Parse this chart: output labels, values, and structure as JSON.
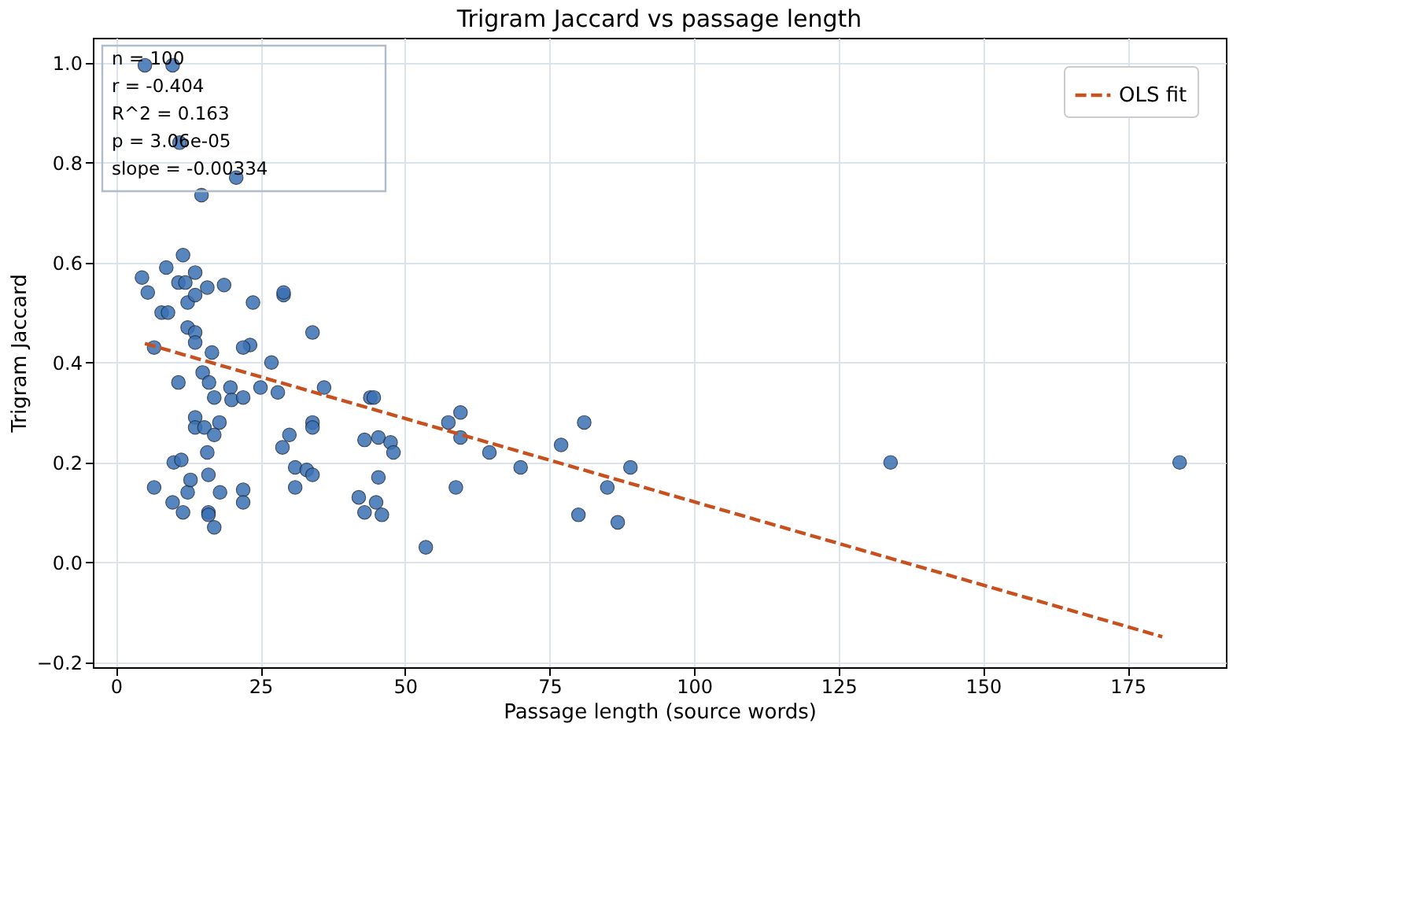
{
  "chart_data": {
    "type": "scatter",
    "title": "Trigram Jaccard vs passage length",
    "xlabel": "Passage length (source words)",
    "ylabel": "Trigram Jaccard",
    "annotations": [
      "n = 100",
      "r = -0.404",
      "R^2 = 0.163",
      "p = 3.06e-05",
      "slope = -0.00334"
    ],
    "xlim": [
      -4,
      192
    ],
    "xticks": [
      0,
      25,
      50,
      75,
      100,
      125,
      150,
      175
    ],
    "ylim": [
      -0.21,
      1.05
    ],
    "yticks": [
      {
        "value": -0.2,
        "label": "−0.2"
      },
      {
        "value": 0.0,
        "label": "0.0"
      },
      {
        "value": 0.2,
        "label": "0.2"
      },
      {
        "value": 0.4,
        "label": "0.4"
      },
      {
        "value": 0.6,
        "label": "0.6"
      },
      {
        "value": 0.8,
        "label": "0.8"
      },
      {
        "value": 1.0,
        "label": "1.0"
      }
    ],
    "grid": true,
    "legend": "top right",
    "series": [
      {
        "marker": "circle",
        "color": "#3a72b5",
        "x": [
          5,
          9.8,
          11,
          20.8,
          14.8,
          4.5,
          5.5,
          8.7,
          11.6,
          13.7,
          7.9,
          9,
          10.8,
          12,
          12.4,
          13.7,
          15.8,
          18.7,
          23.7,
          29,
          29,
          6.6,
          12.4,
          13.7,
          13.7,
          16.6,
          15,
          10.8,
          16.1,
          19.8,
          23.2,
          22,
          25,
          26.9,
          28,
          34,
          36,
          13.7,
          13.7,
          15.3,
          17,
          17.9,
          17,
          20,
          22,
          30,
          28.8,
          34,
          34,
          15.8,
          6.6,
          10,
          11.3,
          12.4,
          9.8,
          11.6,
          12.9,
          16,
          16,
          16,
          17,
          18,
          22,
          22,
          31,
          31,
          33,
          34,
          43,
          44,
          44.6,
          45.4,
          47.5,
          48,
          45.4,
          42,
          43,
          45,
          46,
          53.6,
          57.5,
          59.6,
          59.6,
          58.8,
          64.6,
          70,
          77,
          81,
          80,
          85,
          86.8,
          89,
          134,
          184
        ],
        "values": [
          0.995,
          0.995,
          0.84,
          0.77,
          0.735,
          0.57,
          0.54,
          0.59,
          0.615,
          0.58,
          0.5,
          0.5,
          0.56,
          0.56,
          0.52,
          0.535,
          0.55,
          0.555,
          0.52,
          0.535,
          0.54,
          0.43,
          0.47,
          0.46,
          0.44,
          0.42,
          0.38,
          0.36,
          0.36,
          0.35,
          0.435,
          0.43,
          0.35,
          0.4,
          0.34,
          0.46,
          0.35,
          0.29,
          0.27,
          0.27,
          0.33,
          0.28,
          0.255,
          0.325,
          0.33,
          0.255,
          0.23,
          0.28,
          0.27,
          0.22,
          0.15,
          0.2,
          0.205,
          0.14,
          0.12,
          0.1,
          0.165,
          0.175,
          0.1,
          0.095,
          0.07,
          0.14,
          0.145,
          0.12,
          0.19,
          0.15,
          0.185,
          0.175,
          0.245,
          0.33,
          0.33,
          0.25,
          0.24,
          0.22,
          0.17,
          0.13,
          0.1,
          0.12,
          0.095,
          0.03,
          0.28,
          0.3,
          0.25,
          0.15,
          0.22,
          0.19,
          0.235,
          0.28,
          0.095,
          0.15,
          0.08,
          0.19,
          0.2,
          0.2
        ]
      },
      {
        "type": "line",
        "name": "OLS fit",
        "color": "#c8501e",
        "line_style": "dashed",
        "x": [
          5,
          181
        ],
        "values": [
          0.438,
          -0.149
        ]
      }
    ]
  }
}
